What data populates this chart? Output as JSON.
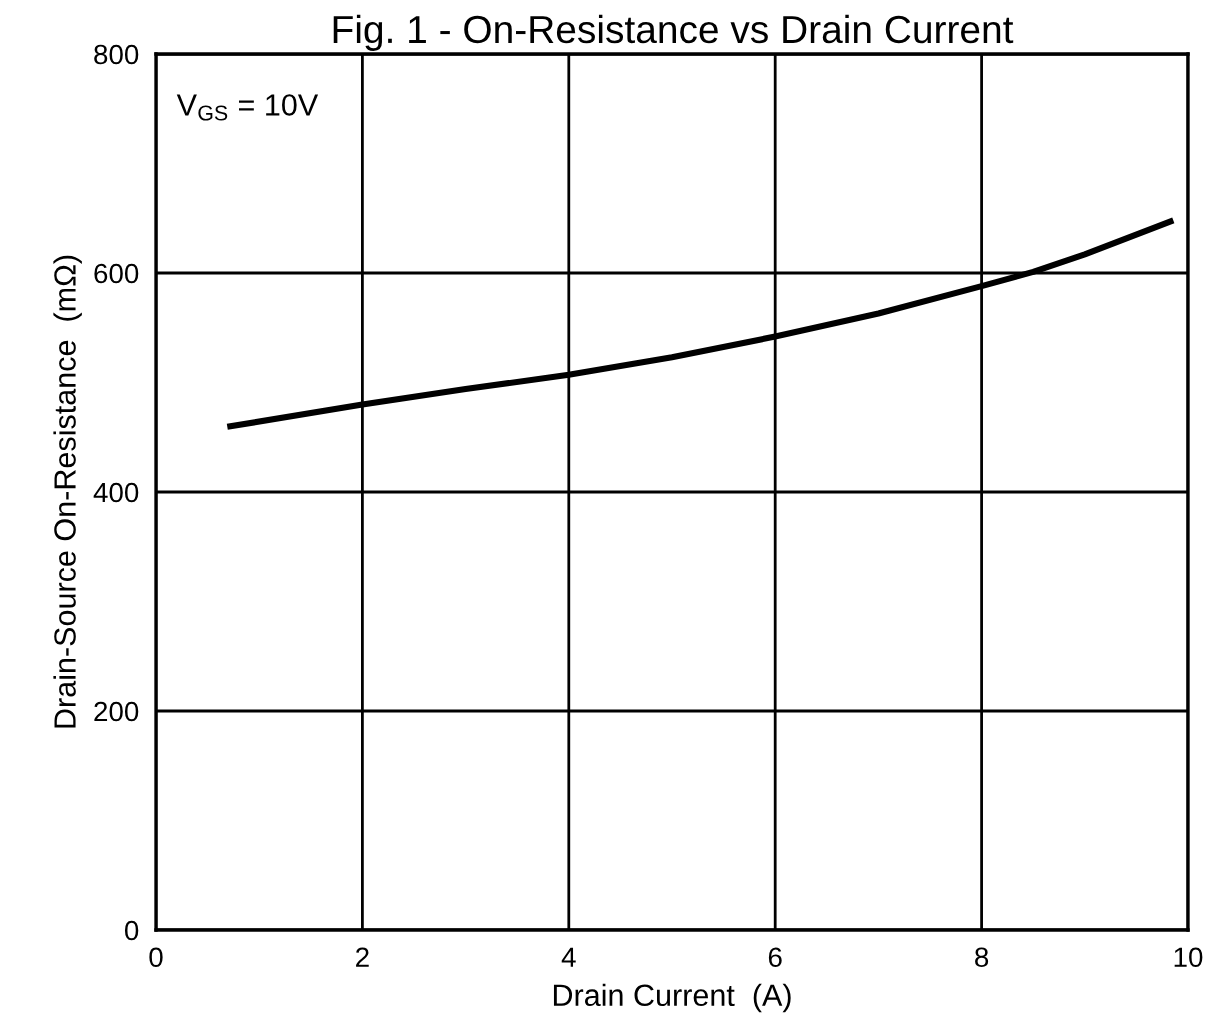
{
  "chart_data": {
    "type": "line",
    "title": "Fig. 1 - On-Resistance vs Drain Current",
    "xlabel": "Drain Current  (A)",
    "ylabel": "Drain-Source On-Resistance  (mΩ)",
    "annotations": [
      "V$_{GS}$ = 10V"
    ],
    "series": [
      {
        "color": "#000000",
        "x": [
          0.72,
          2,
          3,
          4,
          5,
          6,
          7,
          8,
          8.5,
          9,
          9.83
        ],
        "values": [
          460,
          480,
          494,
          507,
          523,
          542,
          563,
          588,
          601,
          617,
          647
        ]
      }
    ],
    "xlim": [
      0,
      10
    ],
    "xticks": [
      0,
      2,
      4,
      6,
      8,
      10
    ],
    "ylim": [
      0,
      800
    ],
    "yticks": [
      0,
      200,
      400,
      600,
      800
    ],
    "grid": true,
    "marker": "none",
    "line_style": "solid"
  }
}
